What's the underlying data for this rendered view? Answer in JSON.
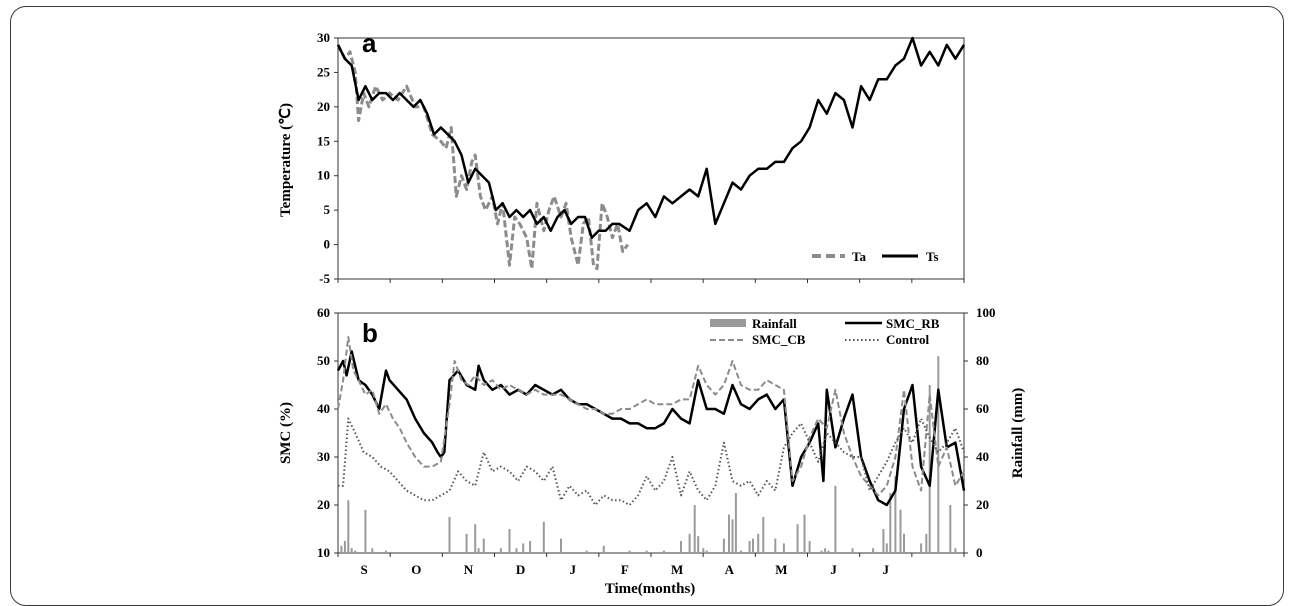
{
  "colors": {
    "ta": "#8c8c8c",
    "ts": "#000000",
    "rb": "#000000",
    "cb": "#8c8c8c",
    "control": "#555555",
    "rain": "#9a9a9a"
  },
  "chart_data": [
    {
      "panel": "a",
      "type": "line",
      "ylabel": "Temperature (℃)",
      "ylim": [
        -5,
        30
      ],
      "yticks": [
        "30",
        "25",
        "20",
        "15",
        "10",
        "5",
        "0",
        "-5"
      ],
      "xlim": [
        0,
        365
      ],
      "legend_position": "bottom-right",
      "legend": [
        "Ta",
        "Ts"
      ],
      "series": [
        {
          "name": "Ta",
          "style": "dashed",
          "x": [
            0,
            4,
            7,
            10,
            12,
            15,
            18,
            22,
            26,
            30,
            35,
            40,
            45,
            50,
            55,
            60,
            63,
            66,
            69,
            72,
            75,
            78,
            80,
            83,
            86,
            90,
            93,
            96,
            100,
            103,
            106,
            110,
            113,
            116,
            120,
            123,
            126,
            130,
            133,
            136,
            140,
            143,
            146,
            149,
            151,
            154,
            157,
            160,
            163,
            166,
            169
          ],
          "y": [
            29,
            27,
            28,
            25,
            18,
            22,
            20,
            23,
            21,
            22,
            21,
            23,
            20,
            20,
            16,
            15,
            14,
            17,
            7,
            10,
            8,
            12,
            13,
            7,
            5,
            7,
            3,
            6,
            -3,
            4,
            3,
            1,
            -3.5,
            6,
            2,
            5,
            7,
            4,
            6,
            1,
            -3,
            3,
            4,
            -3,
            -3.5,
            6,
            4,
            1,
            3,
            -1,
            0
          ]
        },
        {
          "name": "Ts",
          "style": "solid",
          "x": [
            0,
            4,
            8,
            12,
            16,
            20,
            24,
            28,
            32,
            36,
            40,
            44,
            48,
            52,
            56,
            60,
            64,
            68,
            72,
            76,
            80,
            84,
            88,
            92,
            96,
            100,
            104,
            108,
            112,
            116,
            120,
            124,
            128,
            132,
            136,
            140,
            144,
            148,
            152,
            156,
            160,
            164,
            170,
            175,
            180,
            185,
            190,
            195,
            200,
            205,
            210,
            215,
            220,
            225,
            230,
            235,
            240,
            245,
            250,
            255,
            260,
            265,
            270,
            275,
            280,
            285,
            290,
            295,
            300,
            305,
            310,
            315,
            320,
            325,
            330,
            335,
            340,
            345,
            350,
            355,
            360,
            365
          ],
          "y": [
            29,
            27,
            26,
            21,
            23,
            21,
            22,
            22,
            21,
            22,
            21,
            20,
            21,
            19,
            16,
            17,
            16,
            15,
            13,
            9,
            11,
            10,
            9,
            5,
            6,
            4,
            5,
            4,
            5,
            3,
            4,
            2,
            4,
            5,
            3,
            4,
            4,
            1,
            2,
            2,
            3,
            3,
            2,
            5,
            6,
            4,
            7,
            6,
            7,
            8,
            7,
            11,
            3,
            6,
            9,
            8,
            10,
            11,
            11,
            12,
            12,
            14,
            15,
            17,
            21,
            19,
            22,
            21,
            17,
            23,
            21,
            24,
            24,
            26,
            27,
            30,
            26,
            28,
            26,
            29,
            27,
            29
          ]
        }
      ]
    },
    {
      "panel": "b",
      "type": "line",
      "ylabel": "SMC (%)",
      "y2label": "Rainfall (mm)",
      "xlabel": "Time(months)",
      "ylim": [
        10,
        60
      ],
      "y2lim": [
        0,
        100
      ],
      "yticks": [
        "60",
        "50",
        "40",
        "30",
        "20",
        "10"
      ],
      "y2ticks": [
        "100",
        "80",
        "60",
        "40",
        "20",
        "0"
      ],
      "categories": [
        "S",
        "O",
        "N",
        "D",
        "J",
        "F",
        "M",
        "A",
        "M",
        "J",
        "J",
        ""
      ],
      "xlim": [
        0,
        365
      ],
      "legend_position": "top-right",
      "legend": [
        "Rainfall",
        "SMC_RB",
        "SMC_CB",
        "Control"
      ],
      "series": [
        {
          "name": "SMC_RB",
          "style": "solid",
          "x": [
            0,
            3,
            5,
            8,
            12,
            16,
            20,
            24,
            28,
            30,
            35,
            40,
            45,
            50,
            55,
            58,
            60,
            62,
            65,
            70,
            75,
            80,
            82,
            85,
            90,
            95,
            100,
            105,
            110,
            115,
            120,
            125,
            130,
            135,
            140,
            145,
            150,
            155,
            160,
            165,
            170,
            175,
            180,
            185,
            190,
            195,
            200,
            205,
            210,
            215,
            220,
            225,
            230,
            235,
            240,
            245,
            250,
            255,
            260,
            265,
            270,
            275,
            280,
            283,
            285,
            290,
            295,
            300,
            305,
            310,
            315,
            320,
            325,
            330,
            335,
            340,
            345,
            350,
            355,
            360,
            365
          ],
          "y": [
            48,
            50,
            47,
            52,
            46,
            45,
            43,
            40,
            48,
            46,
            44,
            42,
            38,
            35,
            33,
            31,
            30,
            31,
            46,
            48,
            45,
            44,
            49,
            46,
            44,
            45,
            43,
            44,
            43,
            45,
            44,
            43,
            44,
            42,
            41,
            41,
            40,
            39,
            38,
            38,
            37,
            37,
            36,
            36,
            37,
            40,
            38,
            37,
            46,
            40,
            40,
            39,
            45,
            41,
            40,
            42,
            43,
            40,
            42,
            24,
            30,
            33,
            37,
            25,
            44,
            32,
            38,
            43,
            30,
            25,
            21,
            20,
            23,
            40,
            45,
            28,
            24,
            44,
            32,
            33,
            23
          ]
        },
        {
          "name": "SMC_CB",
          "style": "dashed",
          "x": [
            0,
            3,
            6,
            9,
            12,
            16,
            20,
            24,
            28,
            32,
            36,
            40,
            45,
            50,
            55,
            60,
            65,
            68,
            72,
            76,
            80,
            85,
            90,
            95,
            100,
            105,
            110,
            115,
            120,
            125,
            130,
            135,
            140,
            145,
            150,
            155,
            160,
            165,
            170,
            175,
            180,
            185,
            190,
            195,
            200,
            205,
            210,
            215,
            220,
            225,
            230,
            235,
            240,
            245,
            250,
            255,
            260,
            265,
            270,
            275,
            280,
            285,
            290,
            295,
            300,
            305,
            310,
            315,
            320,
            325,
            330,
            335,
            340,
            345,
            350,
            355,
            360,
            365
          ],
          "y": [
            40,
            46,
            55,
            48,
            46,
            43,
            44,
            39,
            41,
            38,
            36,
            33,
            30,
            28,
            28,
            29,
            41,
            50,
            46,
            45,
            47,
            45,
            46,
            44,
            45,
            44,
            43,
            44,
            43,
            43,
            43,
            42,
            41,
            40,
            40,
            39,
            39,
            40,
            40,
            41,
            42,
            41,
            41,
            41,
            42,
            42,
            49,
            45,
            43,
            45,
            50,
            45,
            44,
            44,
            46,
            45,
            44,
            25,
            28,
            34,
            38,
            36,
            44,
            35,
            30,
            26,
            24,
            22,
            24,
            30,
            44,
            28,
            23,
            43,
            28,
            32,
            24,
            27
          ]
        },
        {
          "name": "Control",
          "style": "dotted",
          "x": [
            0,
            3,
            6,
            10,
            15,
            20,
            25,
            30,
            35,
            40,
            45,
            50,
            55,
            60,
            65,
            70,
            75,
            80,
            85,
            90,
            95,
            100,
            105,
            110,
            115,
            120,
            125,
            130,
            135,
            140,
            145,
            150,
            155,
            160,
            165,
            170,
            175,
            180,
            185,
            190,
            195,
            200,
            205,
            210,
            215,
            220,
            225,
            230,
            235,
            240,
            245,
            250,
            255,
            260,
            265,
            270,
            275,
            280,
            285,
            290,
            295,
            300,
            305,
            310,
            315,
            320,
            325,
            330,
            335,
            340,
            345,
            350,
            355,
            360,
            365
          ],
          "y": [
            24,
            24,
            38,
            35,
            31,
            30,
            28,
            27,
            25,
            23,
            22,
            21,
            21,
            22,
            23,
            27,
            25,
            24,
            31,
            27,
            28,
            27,
            25,
            28,
            27,
            25,
            28,
            21,
            24,
            22,
            23,
            20,
            22,
            21,
            21,
            20,
            22,
            26,
            23,
            25,
            30,
            22,
            27,
            23,
            21,
            24,
            33,
            25,
            24,
            25,
            22,
            25,
            23,
            32,
            35,
            37,
            33,
            29,
            35,
            33,
            31,
            30,
            30,
            23,
            26,
            29,
            33,
            36,
            33,
            38,
            34,
            31,
            33,
            36,
            31
          ]
        },
        {
          "name": "Rainfall",
          "style": "bar",
          "x": [
            2,
            4,
            6,
            8,
            10,
            16,
            20,
            28,
            65,
            75,
            80,
            82,
            85,
            95,
            100,
            104,
            108,
            112,
            120,
            130,
            145,
            155,
            170,
            180,
            190,
            200,
            205,
            208,
            210,
            213,
            215,
            225,
            228,
            230,
            232,
            235,
            240,
            242,
            245,
            248,
            255,
            260,
            268,
            272,
            275,
            282,
            284,
            286,
            290,
            300,
            312,
            318,
            320,
            322,
            325,
            328,
            330,
            340,
            343,
            345,
            350,
            357,
            360
          ],
          "values": [
            3,
            5,
            22,
            2,
            1,
            18,
            2,
            1,
            15,
            8,
            12,
            2,
            6,
            2,
            10,
            2,
            4,
            5,
            13,
            6,
            1,
            3,
            1,
            1,
            1,
            5,
            8,
            20,
            7,
            2,
            1,
            6,
            16,
            14,
            25,
            1,
            5,
            6,
            8,
            15,
            6,
            4,
            12,
            16,
            5,
            1,
            2,
            1,
            28,
            2,
            2,
            10,
            4,
            25,
            32,
            18,
            8,
            4,
            8,
            70,
            82,
            20,
            2
          ]
        }
      ]
    }
  ]
}
